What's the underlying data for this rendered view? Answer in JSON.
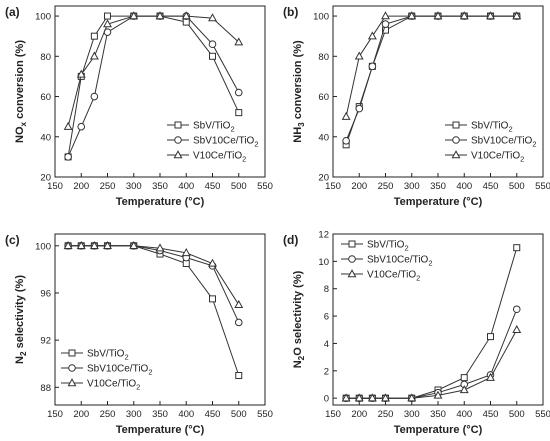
{
  "chart_data": [
    {
      "type": "line",
      "panel_label": "(a)",
      "xlabel": "Temperature (°C)",
      "ylabel": "NOx conversion (%)",
      "xlim": [
        150,
        550
      ],
      "ylim": [
        20,
        105
      ],
      "xticks": [
        150,
        200,
        250,
        300,
        350,
        400,
        450,
        500,
        550
      ],
      "yticks": [
        20,
        40,
        60,
        80,
        100
      ],
      "legend_position": "bottom-right",
      "series": [
        {
          "name": "SbV/TiO2",
          "marker": "square",
          "x": [
            175,
            200,
            225,
            250,
            300,
            350,
            400,
            450,
            500
          ],
          "y": [
            30,
            70,
            90,
            100,
            100,
            100,
            97,
            80,
            52
          ]
        },
        {
          "name": "SbV10Ce/TiO2",
          "marker": "circle",
          "x": [
            175,
            200,
            225,
            250,
            300,
            350,
            400,
            450,
            500
          ],
          "y": [
            30,
            45,
            60,
            92,
            100,
            100,
            100,
            86,
            62
          ]
        },
        {
          "name": "V10Ce/TiO2",
          "marker": "triangle",
          "x": [
            175,
            200,
            225,
            250,
            300,
            350,
            400,
            450,
            500
          ],
          "y": [
            45,
            71,
            80,
            96,
            100,
            100,
            100,
            99,
            87
          ]
        }
      ]
    },
    {
      "type": "line",
      "panel_label": "(b)",
      "xlabel": "Temperature (°C)",
      "ylabel": "NH3 conversion (%)",
      "xlim": [
        150,
        550
      ],
      "ylim": [
        20,
        105
      ],
      "xticks": [
        150,
        200,
        250,
        300,
        350,
        400,
        450,
        500,
        550
      ],
      "yticks": [
        20,
        40,
        60,
        80,
        100
      ],
      "legend_position": "bottom-right",
      "series": [
        {
          "name": "SbV/TiO2",
          "marker": "square",
          "x": [
            175,
            200,
            225,
            250,
            300,
            350,
            400,
            450,
            500
          ],
          "y": [
            36,
            55,
            75,
            93,
            100,
            100,
            100,
            100,
            100
          ]
        },
        {
          "name": "SbV10Ce/TiO2",
          "marker": "circle",
          "x": [
            175,
            200,
            225,
            250,
            300,
            350,
            400,
            450,
            500
          ],
          "y": [
            38,
            54,
            75,
            96,
            100,
            100,
            100,
            100,
            100
          ]
        },
        {
          "name": "V10Ce/TiO2",
          "marker": "triangle",
          "x": [
            175,
            200,
            225,
            250,
            300,
            350,
            400,
            450,
            500
          ],
          "y": [
            50,
            80,
            90,
            100,
            100,
            100,
            100,
            100,
            100
          ]
        }
      ]
    },
    {
      "type": "line",
      "panel_label": "(c)",
      "xlabel": "Temperature (°C)",
      "ylabel": "N2 selectivity (%)",
      "xlim": [
        150,
        550
      ],
      "ylim": [
        86.5,
        101
      ],
      "xticks": [
        150,
        200,
        250,
        300,
        350,
        400,
        450,
        500,
        550
      ],
      "yticks": [
        88,
        92,
        96,
        100
      ],
      "legend_position": "bottom-left",
      "series": [
        {
          "name": "SbV/TiO2",
          "marker": "square",
          "x": [
            175,
            200,
            225,
            250,
            300,
            350,
            400,
            450,
            500
          ],
          "y": [
            100,
            100,
            100,
            100,
            100,
            99.3,
            98.5,
            95.5,
            89
          ]
        },
        {
          "name": "SbV10Ce/TiO2",
          "marker": "circle",
          "x": [
            175,
            200,
            225,
            250,
            300,
            350,
            400,
            450,
            500
          ],
          "y": [
            100,
            100,
            100,
            100,
            100,
            99.6,
            99.0,
            98.3,
            93.5
          ]
        },
        {
          "name": "V10Ce/TiO2",
          "marker": "triangle",
          "x": [
            175,
            200,
            225,
            250,
            300,
            350,
            400,
            450,
            500
          ],
          "y": [
            100,
            100,
            100,
            100,
            100,
            99.8,
            99.4,
            98.5,
            95
          ]
        }
      ]
    },
    {
      "type": "line",
      "panel_label": "(d)",
      "xlabel": "Temperature (°C)",
      "ylabel": "N2O selectivity (%)",
      "xlim": [
        150,
        550
      ],
      "ylim": [
        -0.5,
        12
      ],
      "xticks": [
        150,
        200,
        250,
        300,
        350,
        400,
        450,
        500,
        550
      ],
      "yticks": [
        0,
        2,
        4,
        6,
        8,
        10,
        12
      ],
      "legend_position": "top-left",
      "series": [
        {
          "name": "SbV/TiO2",
          "marker": "square",
          "x": [
            175,
            200,
            225,
            250,
            300,
            350,
            400,
            450,
            500
          ],
          "y": [
            0,
            0,
            0,
            0,
            0,
            0.6,
            1.5,
            4.5,
            11
          ]
        },
        {
          "name": "SbV10Ce/TiO2",
          "marker": "circle",
          "x": [
            175,
            200,
            225,
            250,
            300,
            350,
            400,
            450,
            500
          ],
          "y": [
            0,
            0,
            0,
            0,
            0,
            0.4,
            1.0,
            1.7,
            6.5
          ]
        },
        {
          "name": "V10Ce/TiO2",
          "marker": "triangle",
          "x": [
            175,
            200,
            225,
            250,
            300,
            350,
            400,
            450,
            500
          ],
          "y": [
            0,
            0,
            0,
            0,
            0,
            0.2,
            0.6,
            1.5,
            5
          ]
        }
      ]
    }
  ]
}
